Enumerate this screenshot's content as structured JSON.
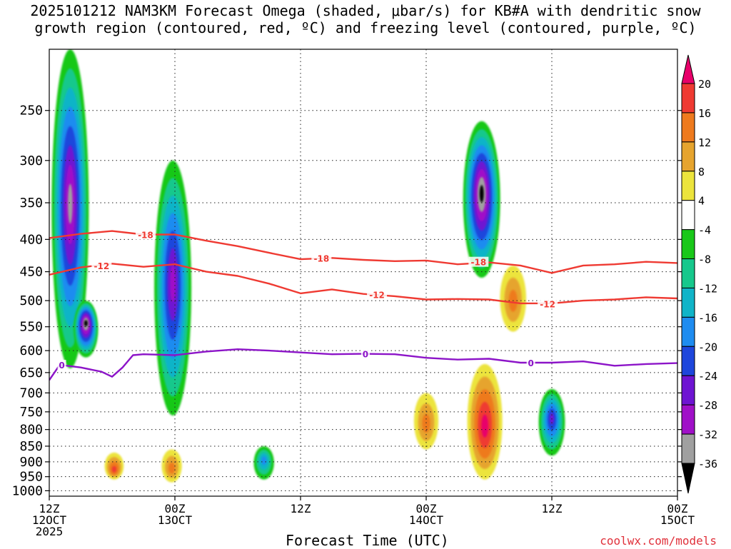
{
  "chart_data": {
    "type": "heatmap",
    "title_line1": "2025101212 NAM3KM Forecast Omega (shaded, μbar/s) for KB#A with dendritic snow",
    "title_line2": "growth region (contoured, red, ºC) and freezing level (contoured, purple, ºC)",
    "xlabel": "Forecast Time (UTC)",
    "ylabel": "",
    "y_axis": {
      "scale": "pressure-hPa",
      "range": [
        1020,
        200
      ],
      "ticks": [
        250,
        300,
        350,
        400,
        450,
        500,
        550,
        600,
        650,
        700,
        750,
        800,
        850,
        900,
        950,
        1000
      ],
      "tick_labels": [
        "250",
        "300",
        "350",
        "400",
        "450",
        "500",
        "550",
        "600",
        "650",
        "700",
        "750",
        "800",
        "850",
        "900",
        "950",
        "1000"
      ]
    },
    "x_axis": {
      "unit": "hours since 2025-10-12 12Z",
      "range": [
        0,
        60
      ],
      "ticks": [
        {
          "hour": 0,
          "label1": "12Z",
          "label2": "12OCT",
          "label3": "2025"
        },
        {
          "hour": 12,
          "label1": "00Z",
          "label2": "13OCT",
          "label3": ""
        },
        {
          "hour": 24,
          "label1": "12Z",
          "label2": "",
          "label3": ""
        },
        {
          "hour": 36,
          "label1": "00Z",
          "label2": "14OCT",
          "label3": ""
        },
        {
          "hour": 48,
          "label1": "12Z",
          "label2": "",
          "label3": ""
        },
        {
          "hour": 60,
          "label1": "00Z",
          "label2": "15OCT",
          "label3": ""
        }
      ]
    },
    "grid": true,
    "colorbar": {
      "levels": [
        20,
        16,
        12,
        8,
        4,
        -4,
        -8,
        -12,
        -16,
        -20,
        -24,
        -28,
        -32,
        -36
      ],
      "labels": [
        "20",
        "16",
        "12",
        "8",
        "4",
        "-4",
        "-8",
        "-12",
        "-16",
        "-20",
        "-24",
        "-28",
        "-32",
        "-36"
      ],
      "colors": [
        "#e8006a",
        "#ef3a32",
        "#ee7a1e",
        "#e6a42e",
        "#ece43c",
        "#ffffff",
        "#19c819",
        "#16c88c",
        "#10b4c8",
        "#1e8cf0",
        "#1e46dc",
        "#6e14d2",
        "#a010c8",
        "#a0a0a0",
        "#000000"
      ]
    },
    "omega_features": [
      {
        "hour": 2.0,
        "top_hpa": 200,
        "bottom_hpa": 640,
        "peak": -32,
        "note": "strong upward motion early"
      },
      {
        "hour": 3.5,
        "top_hpa": 500,
        "bottom_hpa": 615,
        "peak": -36
      },
      {
        "hour": 11.8,
        "top_hpa": 300,
        "bottom_hpa": 760,
        "peak": -28
      },
      {
        "hour": 6.2,
        "top_hpa": 870,
        "bottom_hpa": 960,
        "peak": 16
      },
      {
        "hour": 11.7,
        "top_hpa": 860,
        "bottom_hpa": 970,
        "peak": 12
      },
      {
        "hour": 20.5,
        "top_hpa": 850,
        "bottom_hpa": 960,
        "peak": -16
      },
      {
        "hour": 41.3,
        "top_hpa": 260,
        "bottom_hpa": 460,
        "peak": -36,
        "note": "strong upward motion"
      },
      {
        "hour": 41.6,
        "top_hpa": 630,
        "bottom_hpa": 960,
        "peak": 20,
        "note": "strong sinking"
      },
      {
        "hour": 48.0,
        "top_hpa": 690,
        "bottom_hpa": 880,
        "peak": -24
      },
      {
        "hour": 36.0,
        "top_hpa": 700,
        "bottom_hpa": 860,
        "peak": 12
      },
      {
        "hour": 44.3,
        "top_hpa": 440,
        "bottom_hpa": 560,
        "peak": 12
      }
    ],
    "contours": [
      {
        "name": "-18",
        "color": "#ef3a32",
        "hours": [
          0,
          3,
          6,
          9,
          12,
          15,
          18,
          21,
          24,
          27,
          30,
          33,
          36,
          39,
          42,
          45,
          48,
          51,
          54,
          57,
          60
        ],
        "pressure_hpa": [
          398,
          392,
          388,
          393,
          393,
          402,
          410,
          420,
          430,
          428,
          431,
          433,
          432,
          438,
          435,
          440,
          452,
          440,
          438,
          434,
          436
        ]
      },
      {
        "name": "-12",
        "color": "#ef3a32",
        "hours": [
          0,
          3,
          6,
          9,
          12,
          15,
          18,
          21,
          24,
          27,
          30,
          33,
          36,
          39,
          42,
          45,
          48,
          51,
          54,
          57,
          60
        ],
        "pressure_hpa": [
          455,
          443,
          437,
          442,
          438,
          450,
          457,
          470,
          487,
          480,
          488,
          492,
          498,
          497,
          498,
          505,
          505,
          500,
          498,
          494,
          496
        ]
      },
      {
        "name": "0",
        "color": "#8c14c8",
        "hours": [
          0,
          1,
          3,
          5,
          6,
          7,
          8,
          9,
          12,
          15,
          18,
          21,
          24,
          27,
          30,
          33,
          36,
          39,
          42,
          45,
          48,
          51,
          54,
          57,
          60
        ],
        "pressure_hpa": [
          668,
          632,
          638,
          648,
          660,
          638,
          610,
          608,
          610,
          602,
          597,
          600,
          604,
          608,
          607,
          608,
          616,
          620,
          618,
          627,
          627,
          624,
          634,
          630,
          628
        ]
      }
    ],
    "contour_labels": [
      {
        "text": "-18",
        "hour": 9.2,
        "pressure_hpa": 393
      },
      {
        "text": "-18",
        "hour": 26.0,
        "pressure_hpa": 428
      },
      {
        "text": "-18",
        "hour": 41.0,
        "pressure_hpa": 434
      },
      {
        "text": "-12",
        "hour": 5.0,
        "pressure_hpa": 440
      },
      {
        "text": "-12",
        "hour": 31.3,
        "pressure_hpa": 489
      },
      {
        "text": "-12",
        "hour": 47.6,
        "pressure_hpa": 506
      },
      {
        "text": "0",
        "hour": 1.2,
        "pressure_hpa": 632
      },
      {
        "text": "0",
        "hour": 30.2,
        "pressure_hpa": 607
      },
      {
        "text": "0",
        "hour": 46.0,
        "pressure_hpa": 627
      }
    ],
    "terrain_surface_hpa": 1020
  },
  "footer": {
    "credit": "coolwx.com/models"
  }
}
